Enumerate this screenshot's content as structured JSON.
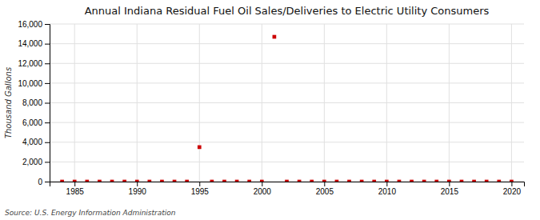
{
  "chart_data": {
    "type": "scatter",
    "title": "Annual Indiana Residual Fuel Oil Sales/Deliveries to Electric Utility Consumers",
    "ylabel": "Thousand Gallons",
    "source": "Source: U.S. Energy Information Administration",
    "x": [
      1984,
      1985,
      1986,
      1987,
      1988,
      1989,
      1990,
      1991,
      1992,
      1993,
      1994,
      1995,
      1996,
      1997,
      1998,
      1999,
      2000,
      2001,
      2002,
      2003,
      2004,
      2005,
      2006,
      2007,
      2008,
      2009,
      2010,
      2011,
      2012,
      2013,
      2014,
      2015,
      2016,
      2017,
      2018,
      2019,
      2020
    ],
    "values": [
      0,
      0,
      0,
      0,
      0,
      0,
      0,
      0,
      0,
      0,
      0,
      3500,
      0,
      0,
      0,
      0,
      0,
      14700,
      0,
      0,
      0,
      0,
      0,
      0,
      0,
      0,
      0,
      0,
      0,
      0,
      0,
      0,
      0,
      0,
      0,
      0,
      0
    ],
    "color": "#cc0000",
    "marker": "square",
    "xlim": [
      1983,
      2021
    ],
    "xticks": [
      1985,
      1990,
      1995,
      2000,
      2005,
      2010,
      2015,
      2020
    ],
    "ylim": [
      0,
      16000
    ],
    "yticks": [
      0,
      {
        "value": 2000,
        "label": "2,000"
      },
      {
        "value": 4000,
        "label": "4,000"
      },
      {
        "value": 6000,
        "label": "6,000"
      },
      {
        "value": 8000,
        "label": "8,000"
      },
      {
        "value": 10000,
        "label": "10,000"
      },
      {
        "value": 12000,
        "label": "12,000"
      },
      {
        "value": 14000,
        "label": "14,000"
      },
      {
        "value": 16000,
        "label": "16,000"
      }
    ],
    "grid": true
  }
}
